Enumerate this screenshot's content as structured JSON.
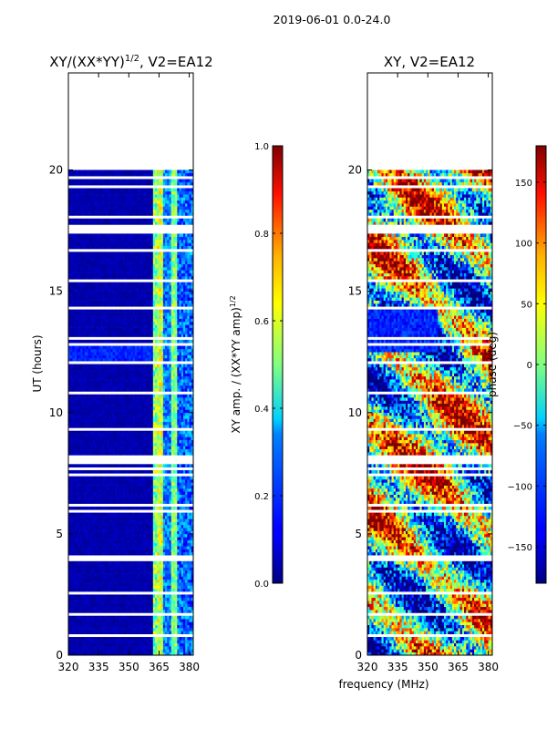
{
  "suptitle": "2019-06-01 0.0-24.0",
  "shared_xlabel": "frequency (MHz)",
  "colormap": "jet",
  "chart_data": [
    {
      "type": "heatmap",
      "title_main": "XY/(XX*YY)",
      "title_exp": "1/2",
      "title_tail": ", V2=EA12",
      "ylabel": "UT (hours)",
      "xlim": [
        320,
        382
      ],
      "ylim": [
        0,
        24
      ],
      "xticks": [
        320,
        335,
        350,
        365,
        380
      ],
      "yticks": [
        0,
        5,
        10,
        15,
        20
      ],
      "data_ut_range": [
        0,
        20
      ],
      "colorbar": {
        "label_main": "XY amp. / (XX*YY amp)",
        "label_exp": "1/2",
        "range": [
          0.0,
          1.0
        ],
        "ticks": [
          0.0,
          0.2,
          0.4,
          0.6,
          0.8,
          1.0
        ],
        "tick_labels": [
          "0.0",
          "0.2",
          "0.4",
          "0.6",
          "0.8",
          "1.0"
        ]
      },
      "description_bands": [
        {
          "freq": [
            320,
            362
          ],
          "value": 0.02
        },
        {
          "freq": [
            362,
            367
          ],
          "value": 0.45
        },
        {
          "freq": [
            367,
            371
          ],
          "value": 0.25
        },
        {
          "freq": [
            371,
            374
          ],
          "value": 0.5
        },
        {
          "freq": [
            374,
            382
          ],
          "value": 0.2
        }
      ]
    },
    {
      "type": "heatmap",
      "title": "XY, V2=EA12",
      "ylabel": "",
      "xlim": [
        320,
        382
      ],
      "ylim": [
        0,
        24
      ],
      "xticks": [
        320,
        335,
        350,
        365,
        380
      ],
      "yticks": [
        0,
        5,
        10,
        15,
        20
      ],
      "data_ut_range": [
        0,
        20
      ],
      "colorbar": {
        "label": "phase (deg)",
        "range": [
          -180,
          180
        ],
        "ticks": [
          -150,
          -100,
          -50,
          0,
          50,
          100,
          150
        ],
        "tick_labels": [
          "−150",
          "−100",
          "−50",
          "0",
          "50",
          "100",
          "150"
        ]
      }
    }
  ]
}
